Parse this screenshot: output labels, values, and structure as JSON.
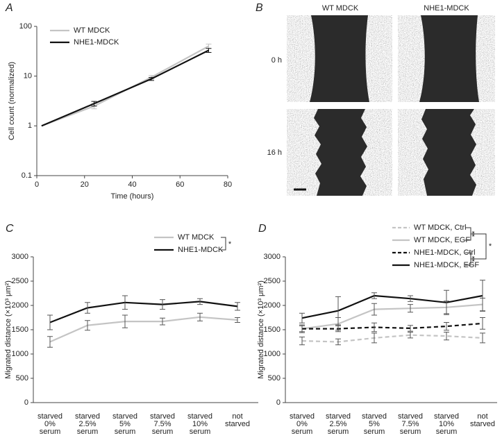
{
  "chart_data": [
    {
      "type": "line",
      "panel": "A",
      "log_y": true,
      "xlabel": "Time (hours)",
      "ylabel": "Cell count (normalized)",
      "x": [
        2,
        24,
        48,
        72
      ],
      "xlim": [
        0,
        80
      ],
      "xticks": [
        0,
        20,
        40,
        60,
        80
      ],
      "ylim": [
        0.1,
        100
      ],
      "yticks": [
        0.1,
        1,
        10,
        100
      ],
      "series": [
        {
          "name": "WT MDCK",
          "color": "#c4c4c4",
          "dash": false,
          "values": [
            1,
            2.5,
            9.5,
            40
          ],
          "errors": [
            null,
            0.3,
            0.8,
            4
          ]
        },
        {
          "name": "NHE1-MDCK",
          "color": "#111111",
          "dash": false,
          "values": [
            1,
            2.8,
            8.8,
            33
          ],
          "errors": [
            null,
            0.3,
            0.6,
            3
          ]
        }
      ]
    },
    {
      "type": "line",
      "panel": "C",
      "log_y": false,
      "ylabel": "Migrated distance (×10³ μm²)",
      "categories": [
        [
          "starved",
          "0%",
          "serum"
        ],
        [
          "starved",
          "2.5%",
          "serum"
        ],
        [
          "starved",
          "5%",
          "serum"
        ],
        [
          "starved",
          "7.5%",
          "serum"
        ],
        [
          "starved",
          "10%",
          "serum"
        ],
        [
          "not",
          "starved"
        ]
      ],
      "ylim": [
        0,
        3000
      ],
      "yticks": [
        0,
        500,
        1000,
        1500,
        2000,
        2500,
        3000
      ],
      "series": [
        {
          "name": "WT MDCK",
          "color": "#c4c4c4",
          "dash": false,
          "values": [
            1250,
            1590,
            1670,
            1670,
            1760,
            1700
          ],
          "errors": [
            110,
            100,
            130,
            70,
            80,
            50
          ]
        },
        {
          "name": "NHE1-MDCK",
          "color": "#111111",
          "dash": false,
          "values": [
            1650,
            1950,
            2060,
            2020,
            2080,
            1980
          ],
          "errors": [
            150,
            110,
            140,
            100,
            60,
            80
          ]
        }
      ],
      "annotations": [
        "*"
      ]
    },
    {
      "type": "line",
      "panel": "D",
      "log_y": false,
      "ylabel": "Migrated distance (×10³ μm²)",
      "categories": [
        [
          "starved",
          "0%",
          "serum"
        ],
        [
          "starved",
          "2.5%",
          "serum"
        ],
        [
          "starved",
          "5%",
          "serum"
        ],
        [
          "starved",
          "7.5%",
          "serum"
        ],
        [
          "starved",
          "10%",
          "serum"
        ],
        [
          "not",
          "starved"
        ]
      ],
      "ylim": [
        0,
        3000
      ],
      "yticks": [
        0,
        500,
        1000,
        1500,
        2000,
        2500,
        3000
      ],
      "series": [
        {
          "name": "WT MDCK, Ctrl",
          "color": "#c4c4c4",
          "dash": true,
          "values": [
            1270,
            1250,
            1330,
            1390,
            1370,
            1330
          ],
          "errors": [
            80,
            60,
            100,
            60,
            80,
            100
          ]
        },
        {
          "name": "WT MDCK, EGF",
          "color": "#c4c4c4",
          "dash": false,
          "values": [
            1520,
            1620,
            1920,
            1940,
            1960,
            2020
          ],
          "errors": [
            60,
            130,
            120,
            80,
            130,
            130
          ]
        },
        {
          "name": "NHE1-MDCK, Ctrl",
          "color": "#111111",
          "dash": true,
          "values": [
            1520,
            1520,
            1550,
            1530,
            1570,
            1630
          ],
          "errors": [
            80,
            60,
            90,
            60,
            80,
            120
          ]
        },
        {
          "name": "NHE1-MDCK, EGF",
          "color": "#111111",
          "dash": false,
          "values": [
            1740,
            1890,
            2200,
            2140,
            2060,
            2200
          ],
          "errors": [
            100,
            290,
            60,
            60,
            250,
            320
          ]
        }
      ],
      "annotations": [
        "**",
        "**",
        "*"
      ]
    }
  ],
  "panel_b": {
    "panel": "B",
    "columns": [
      "WT MDCK",
      "NHE1-MDCK"
    ],
    "rows": [
      "0 h",
      "16 h"
    ]
  }
}
